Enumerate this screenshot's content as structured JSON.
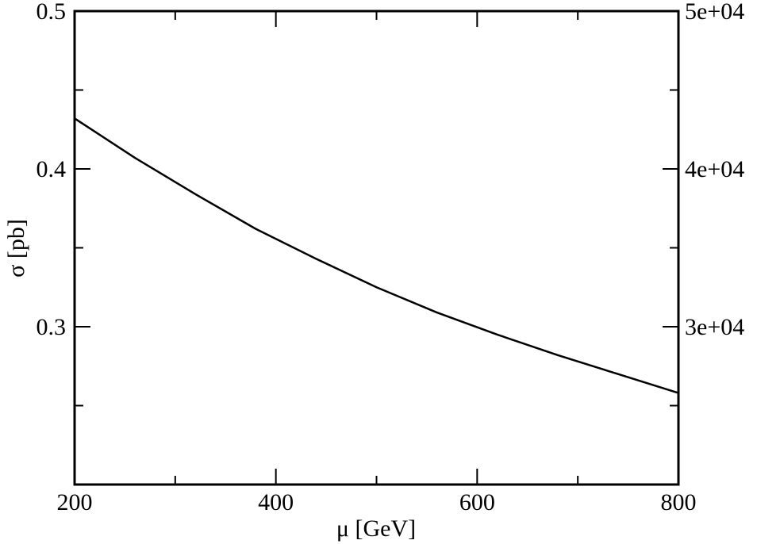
{
  "chart_data": {
    "type": "line",
    "xlabel": "μ [GeV]",
    "ylabel": "σ [pb]",
    "xlim": [
      200,
      800
    ],
    "ylim": [
      0.2,
      0.5
    ],
    "y2lim": [
      20000,
      50000
    ],
    "grid": false,
    "legend": "none",
    "x_ticks": [
      {
        "value": 200,
        "label": "200"
      },
      {
        "value": 400,
        "label": "400"
      },
      {
        "value": 600,
        "label": "600"
      },
      {
        "value": 800,
        "label": "800"
      }
    ],
    "x_minor_ticks": [
      300,
      500,
      700
    ],
    "y_ticks": [
      {
        "value": 0.3,
        "label": "0.3"
      },
      {
        "value": 0.4,
        "label": "0.4"
      },
      {
        "value": 0.5,
        "label": "0.5"
      }
    ],
    "y_minor_ticks": [
      0.25,
      0.35,
      0.45
    ],
    "y2_ticks": [
      {
        "value": 30000,
        "label": "3e+04"
      },
      {
        "value": 40000,
        "label": "4e+04"
      },
      {
        "value": 50000,
        "label": "5e+04"
      }
    ],
    "series": [
      {
        "color": "#000000",
        "x": [
          200,
          260,
          320,
          380,
          440,
          500,
          560,
          620,
          680,
          740,
          800
        ],
        "y": [
          0.432,
          0.407,
          0.384,
          0.362,
          0.343,
          0.325,
          0.309,
          0.295,
          0.282,
          0.27,
          0.258
        ]
      }
    ]
  }
}
